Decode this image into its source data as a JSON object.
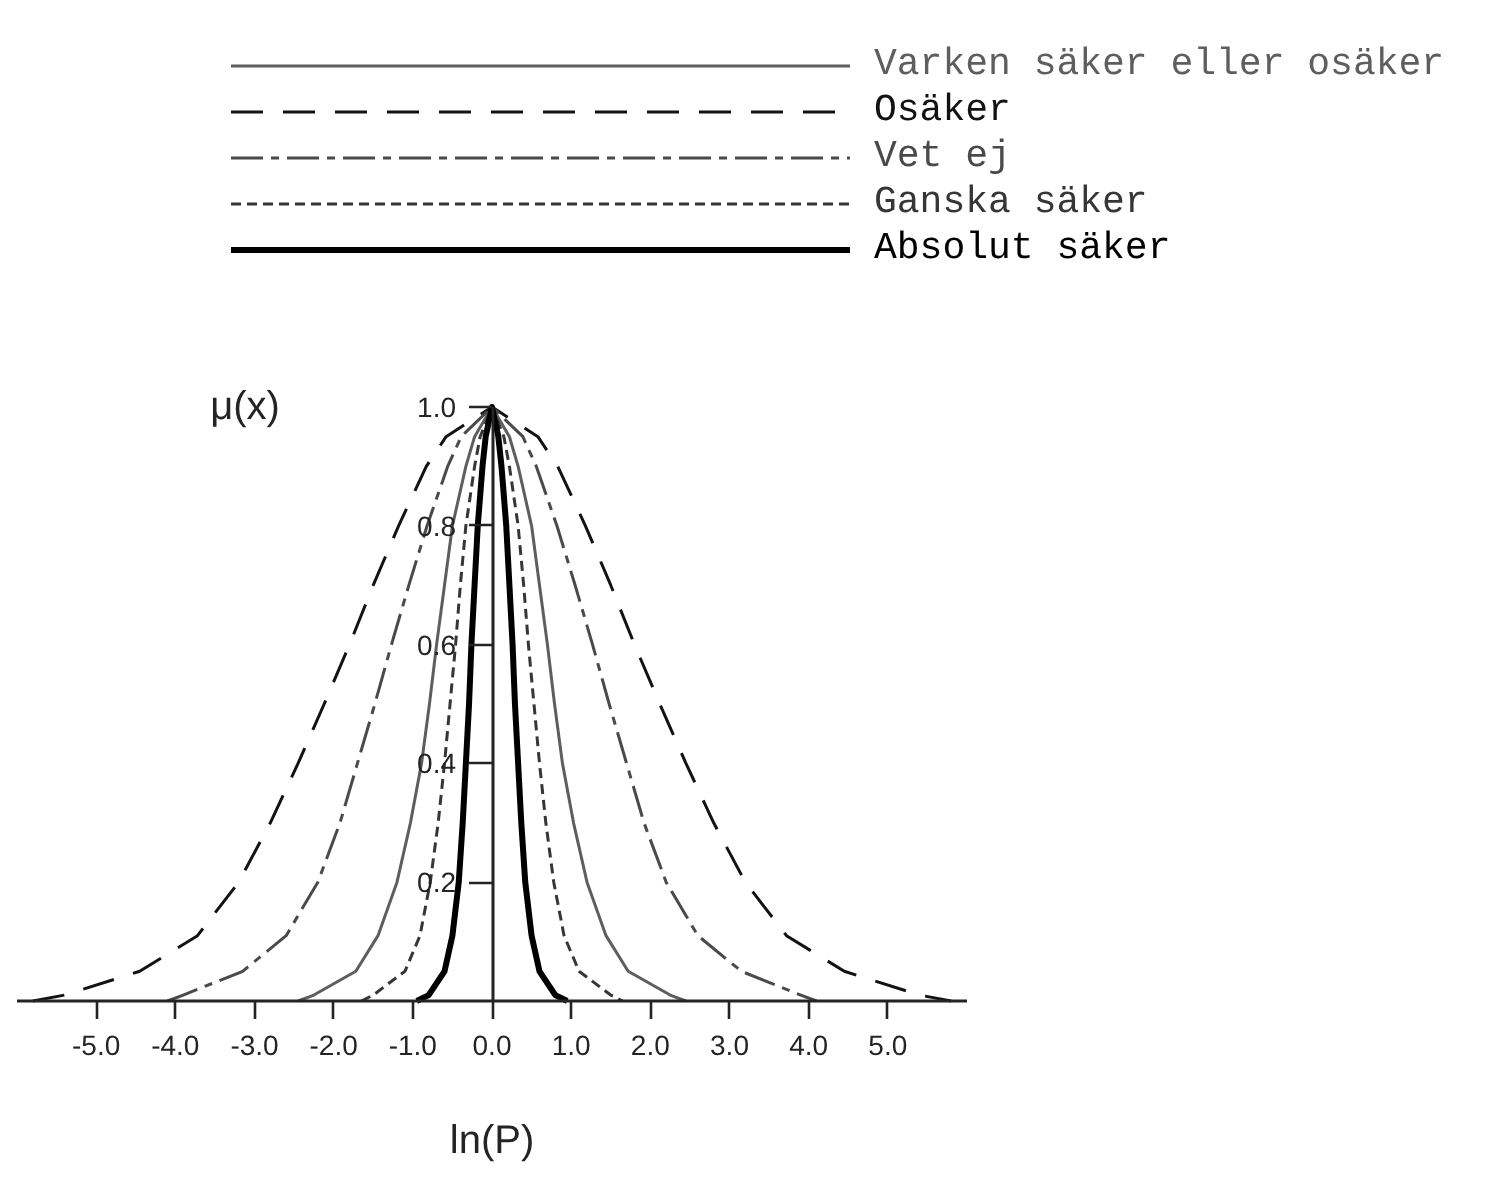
{
  "chart_data": {
    "type": "line",
    "xlabel": "ln(P)",
    "ylabel": "μ(x)",
    "xlim": [
      -6.0,
      6.0
    ],
    "ylim": [
      0,
      1.0
    ],
    "xticks": [
      {
        "value": -5,
        "label": "-5.0"
      },
      {
        "value": -4,
        "label": "-4.0"
      },
      {
        "value": -3,
        "label": "-3.0"
      },
      {
        "value": -2,
        "label": "-2.0"
      },
      {
        "value": -1,
        "label": "-1.0"
      },
      {
        "value": 0,
        "label": "0.0"
      },
      {
        "value": 1,
        "label": "1.0"
      },
      {
        "value": 2,
        "label": "2.0"
      },
      {
        "value": 3,
        "label": "3.0"
      },
      {
        "value": 4,
        "label": "4.0"
      },
      {
        "value": 5,
        "label": "5.0"
      }
    ],
    "yticks": [
      0.2,
      0.4,
      0.6,
      0.8,
      {
        "value": 1,
        "label": "1.0"
      }
    ],
    "grid": false,
    "legend": "top",
    "series": [
      {
        "name": "Varken säker eller osäker",
        "color": "#5e5e5e",
        "line_style": "solid",
        "x": [
          -2.45,
          -2.25,
          -1.72,
          -1.44,
          -1.2,
          -1.03,
          -0.89,
          -0.79,
          -0.7,
          -0.6,
          -0.5,
          -0.33,
          -0.22,
          0,
          0.22,
          0.33,
          0.5,
          0.6,
          0.7,
          0.79,
          0.89,
          1.03,
          1.2,
          1.44,
          1.72,
          2.25,
          2.45
        ],
        "values": [
          0,
          0.01,
          0.05,
          0.11,
          0.2,
          0.3,
          0.4,
          0.5,
          0.6,
          0.7,
          0.8,
          0.9,
          0.95,
          1,
          0.95,
          0.9,
          0.8,
          0.7,
          0.6,
          0.5,
          0.4,
          0.3,
          0.2,
          0.11,
          0.05,
          0.01,
          0
        ]
      },
      {
        "name": "Osäker",
        "color": "#121212",
        "line_style": "dashed",
        "x": [
          -5.8,
          -5.4,
          -4.45,
          -3.72,
          -3.2,
          -2.8,
          -2.45,
          -2.12,
          -1.8,
          -1.5,
          -1.18,
          -0.83,
          -0.58,
          0,
          0.58,
          0.83,
          1.18,
          1.5,
          1.8,
          2.12,
          2.45,
          2.8,
          3.2,
          3.72,
          4.45,
          5.4,
          5.8
        ],
        "values": [
          0,
          0.01,
          0.05,
          0.11,
          0.2,
          0.3,
          0.4,
          0.5,
          0.6,
          0.7,
          0.8,
          0.9,
          0.95,
          1,
          0.95,
          0.9,
          0.8,
          0.7,
          0.6,
          0.5,
          0.4,
          0.3,
          0.2,
          0.11,
          0.05,
          0.01,
          0
        ]
      },
      {
        "name": "Vet ej",
        "color": "#4a4a4a",
        "line_style": "dashdot",
        "x": [
          -4.1,
          -3.9,
          -3.15,
          -2.6,
          -2.2,
          -1.92,
          -1.7,
          -1.48,
          -1.27,
          -1.05,
          -0.82,
          -0.56,
          -0.39,
          0,
          0.39,
          0.56,
          0.82,
          1.05,
          1.27,
          1.48,
          1.7,
          1.92,
          2.2,
          2.6,
          3.15,
          3.9,
          4.1
        ],
        "values": [
          0,
          0.01,
          0.05,
          0.11,
          0.2,
          0.3,
          0.4,
          0.5,
          0.6,
          0.7,
          0.8,
          0.9,
          0.95,
          1,
          0.95,
          0.9,
          0.8,
          0.7,
          0.6,
          0.5,
          0.4,
          0.3,
          0.2,
          0.11,
          0.05,
          0.01,
          0
        ]
      },
      {
        "name": "Ganska säker",
        "color": "#363636",
        "line_style": "dotted",
        "x": [
          -1.65,
          -1.5,
          -1.1,
          -0.91,
          -0.78,
          -0.68,
          -0.6,
          -0.53,
          -0.46,
          -0.4,
          -0.33,
          -0.22,
          -0.15,
          0,
          0.15,
          0.22,
          0.33,
          0.4,
          0.46,
          0.53,
          0.6,
          0.68,
          0.78,
          0.91,
          1.1,
          1.5,
          1.65
        ],
        "values": [
          0,
          0.01,
          0.05,
          0.11,
          0.2,
          0.3,
          0.4,
          0.5,
          0.6,
          0.7,
          0.8,
          0.9,
          0.95,
          1,
          0.95,
          0.9,
          0.8,
          0.7,
          0.6,
          0.5,
          0.4,
          0.3,
          0.2,
          0.11,
          0.05,
          0.01,
          0
        ]
      },
      {
        "name": "Absolut säker",
        "color": "#000000",
        "line_style": "solid",
        "x": [
          -0.95,
          -0.8,
          -0.6,
          -0.5,
          -0.42,
          -0.37,
          -0.33,
          -0.29,
          -0.26,
          -0.22,
          -0.18,
          -0.12,
          -0.08,
          0,
          0.08,
          0.12,
          0.18,
          0.22,
          0.26,
          0.29,
          0.33,
          0.37,
          0.42,
          0.5,
          0.6,
          0.8,
          0.95
        ],
        "values": [
          0,
          0.01,
          0.05,
          0.11,
          0.2,
          0.3,
          0.4,
          0.5,
          0.6,
          0.7,
          0.8,
          0.9,
          0.95,
          1,
          0.95,
          0.9,
          0.8,
          0.7,
          0.6,
          0.5,
          0.4,
          0.3,
          0.2,
          0.11,
          0.05,
          0.01,
          0
        ]
      }
    ]
  }
}
